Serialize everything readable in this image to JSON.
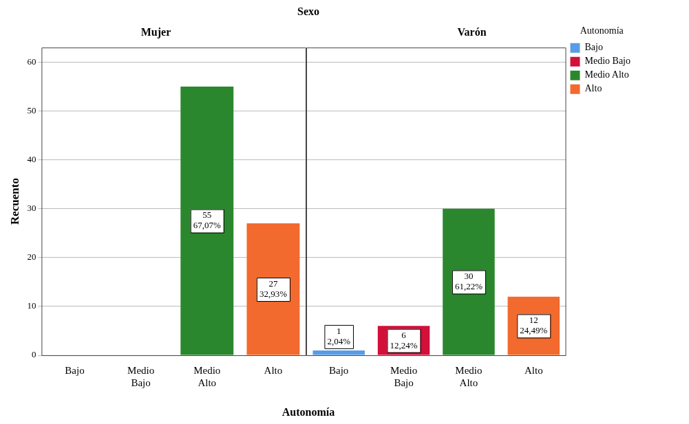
{
  "chart_data": [
    {
      "type": "bar",
      "title": "Mujer",
      "subtitle": "Sexo",
      "xlabel": "Autonomía",
      "ylabel": "Recuento",
      "categories": [
        "Bajo",
        "Medio Bajo",
        "Medio Alto",
        "Alto"
      ],
      "series": [
        {
          "color": "#5a9be6",
          "values": [
            0,
            null,
            null,
            null
          ]
        },
        {
          "color": "#d2103a",
          "values": [
            null,
            0,
            null,
            null
          ]
        },
        {
          "color": "#2b872d",
          "values": [
            null,
            null,
            55,
            null
          ],
          "value_labels": [
            null,
            null,
            "55\n67,07%",
            null
          ]
        },
        {
          "color": "#f26a2e",
          "values": [
            null,
            null,
            null,
            27
          ],
          "value_labels": [
            null,
            null,
            null,
            "27\n32,93%"
          ]
        }
      ],
      "ylim": [
        0,
        63
      ],
      "yticks": [
        0,
        10,
        20,
        30,
        40,
        50,
        60
      ],
      "grid": "y"
    },
    {
      "type": "bar",
      "title": "Varón",
      "categories": [
        "Bajo",
        "Medio Bajo",
        "Medio Alto",
        "Alto"
      ],
      "series": [
        {
          "name": "Bajo",
          "color": "#5a9be6",
          "values": [
            1,
            null,
            null,
            null
          ],
          "value_labels": [
            "1\n2,04%",
            null,
            null,
            null
          ]
        },
        {
          "name": "Medio Bajo",
          "color": "#d2103a",
          "values": [
            null,
            6,
            null,
            null
          ],
          "value_labels": [
            null,
            "6\n12,24%",
            null,
            null
          ]
        },
        {
          "name": "Medio Alto",
          "color": "#2b872d",
          "values": [
            null,
            null,
            30,
            null
          ],
          "value_labels": [
            null,
            null,
            "30\n61,22%",
            null
          ]
        },
        {
          "name": "Alto",
          "color": "#f26a2e",
          "values": [
            null,
            null,
            null,
            12
          ],
          "value_labels": [
            null,
            null,
            null,
            "12\n24,49%"
          ]
        }
      ],
      "ylim": [
        0,
        63
      ],
      "yticks": [
        0,
        10,
        20,
        30,
        40,
        50,
        60
      ],
      "grid": "y",
      "tick_labels": "x",
      "legend": "right",
      "legend_title": "Autonomía"
    }
  ]
}
